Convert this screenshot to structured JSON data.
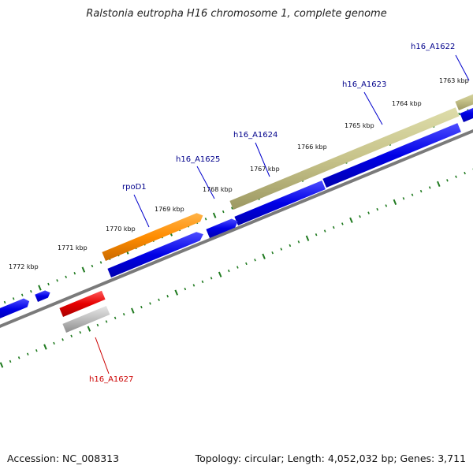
{
  "title": "Ralstonia eutropha H16 chromosome 1, complete genome",
  "footer": {
    "accession": "Accession: NC_008313",
    "summary": "Topology: circular; Length: 4,052,032 bp; Genes: 3,711"
  },
  "colors": {
    "forward_tick": "#1f7a1f",
    "reverse_tick": "#1f7a1f",
    "backbone": "#7a7a7a",
    "cds_blue": "#0000e6",
    "rpoD1": "#ff8c00",
    "h16_A1623": "#c7c38a",
    "h16_A1627": "#e60000",
    "grey_feature": "#b0b0b0",
    "label_blue": "#00008b",
    "label_red": "#cc0000"
  },
  "kbp_labels": [
    "1763 kbp",
    "1764 kbp",
    "1765 kbp",
    "1766 kbp",
    "1767 kbp",
    "1768 kbp",
    "1769 kbp",
    "1770 kbp",
    "1771 kbp",
    "1772 kbp"
  ],
  "gene_labels": [
    {
      "name": "h16_A1622",
      "color": "label_blue"
    },
    {
      "name": "h16_A1623",
      "color": "label_blue"
    },
    {
      "name": "h16_A1624",
      "color": "label_blue"
    },
    {
      "name": "h16_A1625",
      "color": "label_blue"
    },
    {
      "name": "rpoD1",
      "color": "label_blue"
    },
    {
      "name": "h16_A1627",
      "color": "label_red"
    }
  ]
}
